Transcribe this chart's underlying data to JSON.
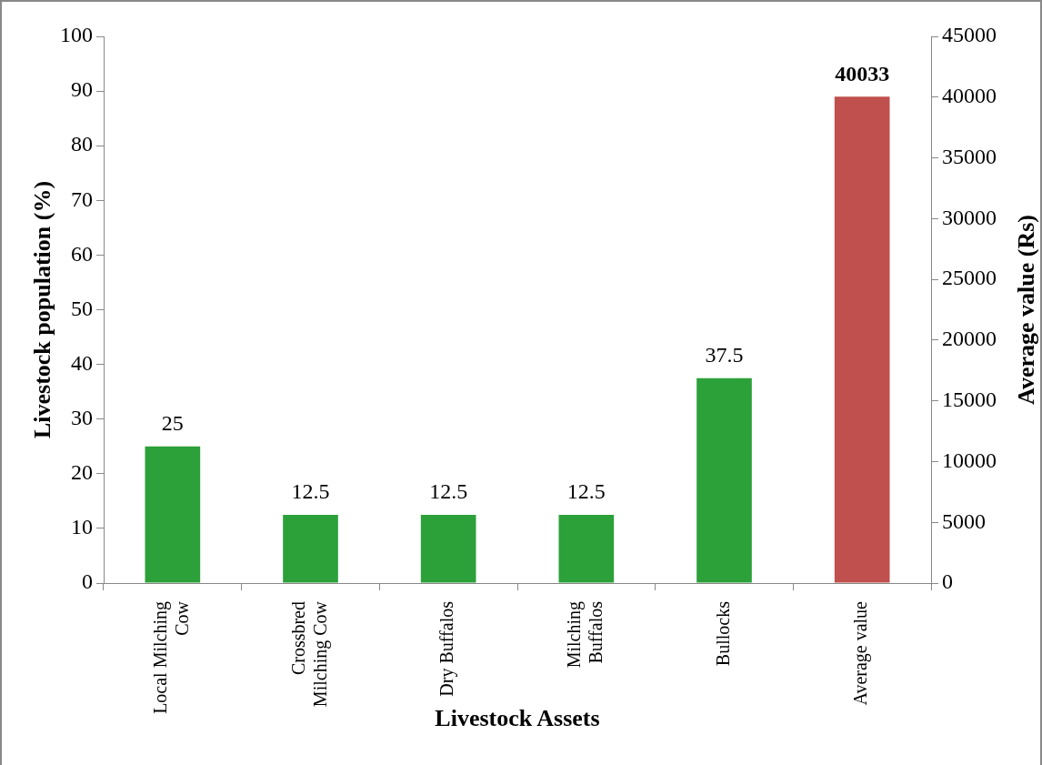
{
  "chart_data": {
    "type": "bar",
    "xlabel": "Livestock Assets",
    "ylabel": "Livestock population (%)",
    "y2label": "Average value (Rs)",
    "categories": [
      "Local Milching Cow",
      "Crossbred Milching Cow",
      "Dry Buffalos",
      "Milching Buffalos",
      "Bullocks",
      "Average value"
    ],
    "series": [
      {
        "color": "#2ca13a",
        "values": [
          25,
          12.5,
          12.5,
          12.5,
          37.5,
          null
        ]
      },
      {
        "color": "#c0504d",
        "axis": "y2",
        "values": [
          null,
          null,
          null,
          null,
          null,
          40033
        ]
      }
    ],
    "ylim": [
      0,
      100
    ],
    "yticks": [
      0,
      10,
      20,
      30,
      40,
      50,
      60,
      70,
      80,
      90,
      100
    ],
    "y2lim": [
      0,
      45000
    ],
    "y2ticks": [
      0,
      5000,
      10000,
      15000,
      20000,
      25000,
      30000,
      35000,
      40000,
      45000
    ],
    "data_labels": true,
    "legend": false,
    "grid": false
  }
}
